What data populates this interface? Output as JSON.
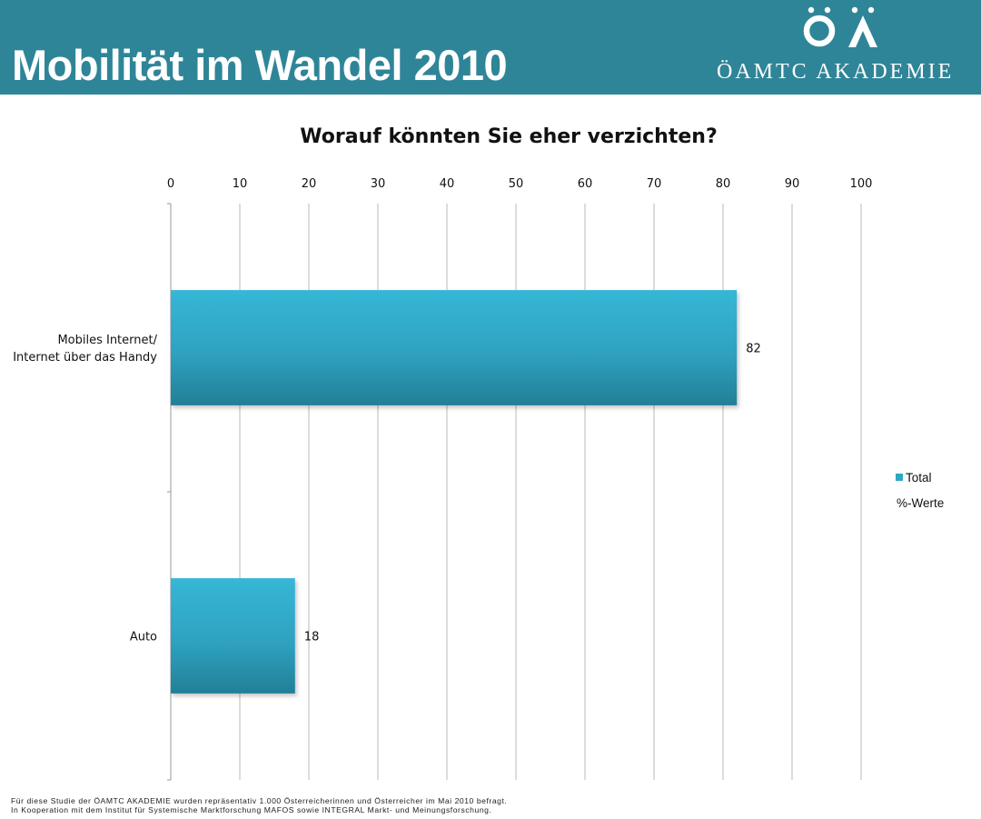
{
  "header": {
    "title": "Mobilität im Wandel 2010",
    "logo_text": "ÖAMTC AKADEMIE",
    "logo_mark": "ÖA",
    "background": "#2f8598"
  },
  "chart_data": {
    "type": "bar",
    "orientation": "horizontal",
    "title": "Worauf könnten Sie eher verzichten?",
    "categories": [
      "Mobiles Internet/\nInternet über das Handy",
      "Auto"
    ],
    "series": [
      {
        "name": "Total",
        "values": [
          82,
          18
        ],
        "color": "#2fa7c4"
      }
    ],
    "legend_note": "%-Werte",
    "xlim": [
      0,
      100
    ],
    "xticks": [
      "0",
      "10",
      "20",
      "30",
      "40",
      "50",
      "60",
      "70",
      "80",
      "90",
      "100"
    ],
    "x_axis_position": "top",
    "grid": true,
    "legend_position": "right"
  },
  "footer": {
    "line1": "Für diese Studie der ÖAMTC AKADEMIE wurden repräsentativ 1.000 Österreicherinnen und Österreicher im Mai 2010 befragt.",
    "line2": "In Kooperation mit dem Institut für Systemische Marktforschung MAFOS sowie INTEGRAL Markt- und Meinungsforschung."
  }
}
